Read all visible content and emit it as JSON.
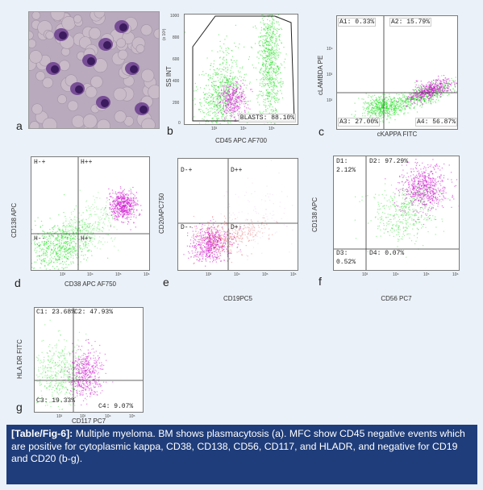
{
  "caption": {
    "label": "[Table/Fig-6]:",
    "text": " Multiple myeloma. BM shows plasmacytosis (a). MFC show CD45 negative events which are positive for cytoplasmic kappa, CD38, CD138, CD56, CD117, and HLADR, and negative for CD19 and CD20 (b-g)."
  },
  "colors": {
    "caption_bg": "#1f3d7a",
    "figure_bg": "#eaf1f8",
    "green": "#22e022",
    "magenta": "#d11ad1",
    "red": "#e03030"
  },
  "panels": {
    "a": {
      "letter": "a"
    },
    "b": {
      "letter": "b",
      "xlabel": "CD45 APC AF700",
      "ylabel": "SS INT",
      "yunit": "(x 10³)",
      "yticks": [
        "1000",
        "800",
        "600",
        "400",
        "200",
        "0"
      ],
      "xticks": [
        "10³",
        "10⁴",
        "10⁵"
      ],
      "gate": "BLASTS: 88.10%"
    },
    "c": {
      "letter": "c",
      "xlabel": "cKAPPA FITC",
      "ylabel": "cLAMBDA PE",
      "q": [
        "A1: 0.33%",
        "A2: 15.79%",
        "A3: 27.00%",
        "A4: 56.87%"
      ],
      "ticks": [
        "10⁴",
        "10³",
        "10²"
      ]
    },
    "d": {
      "letter": "d",
      "xlabel": "CD38 APC AF750",
      "ylabel": "CD138 APC",
      "q": [
        "H-+",
        "H++",
        "H--",
        "H+-"
      ],
      "xticks": [
        "10³",
        "10⁴",
        "10⁵",
        "10⁶"
      ]
    },
    "e": {
      "letter": "e",
      "xlabel": "CD19PC5",
      "ylabel": "CD20APC750",
      "q": [
        "D-+",
        "D++",
        "D--",
        "D+-"
      ],
      "xticks": [
        "10³",
        "10⁴",
        "10⁵",
        "10⁶"
      ]
    },
    "f": {
      "letter": "f",
      "xlabel": "CD56 PC7",
      "ylabel": "CD138 APC",
      "q": [
        "D1:",
        "2.12%",
        "D2: 97.29%",
        "D3:",
        "0.52%",
        "D4: 0.07%"
      ],
      "xticks": [
        "10³",
        "10⁴",
        "10⁵",
        "10⁶"
      ]
    },
    "g": {
      "letter": "g",
      "xlabel": "CD117 PC7",
      "ylabel": "HLA DR FITC",
      "q": [
        "C1: 23.68%",
        "C2: 47.93%",
        "C3: 19.33%",
        "C4: 9.07%"
      ],
      "xticks": [
        "10²",
        "10³",
        "10⁴",
        "10⁵"
      ]
    }
  }
}
